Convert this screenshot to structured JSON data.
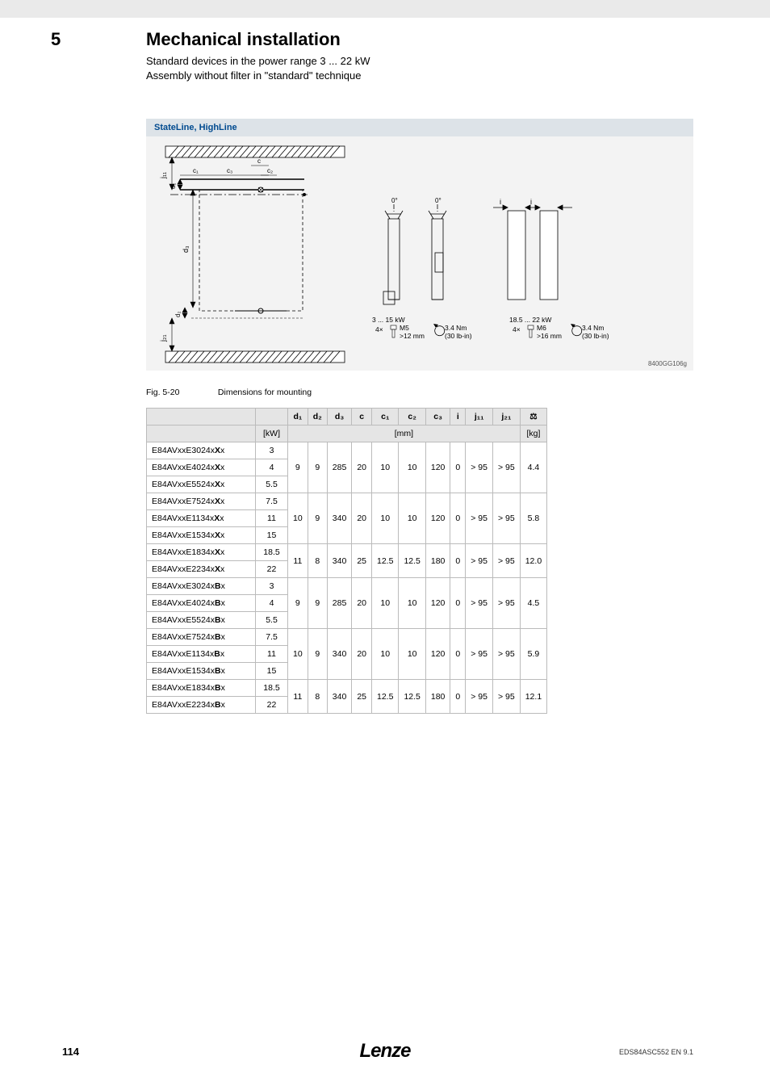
{
  "header": {
    "section_number": "5",
    "section_title": "Mechanical installation",
    "subtitle1": "Standard devices in the power range 3 ... 22 kW",
    "subtitle2": "Assembly without filter in \"standard\" technique"
  },
  "diagram": {
    "header": "StateLine, HighLine",
    "ref": "8400GG106g",
    "spec1_title": "3 ... 15 kW",
    "spec1_count": "4×",
    "spec1_screw": "M5",
    "spec1_len": ">12 mm",
    "spec1_torque": "3.4 Nm",
    "spec1_torque_alt": "(30 lb-in)",
    "spec2_title": "18.5 ... 22 kW",
    "spec2_count": "4×",
    "spec2_screw": "M6",
    "spec2_len": ">16 mm",
    "spec2_torque": "3.4 Nm",
    "spec2_torque_alt": "(30 lb-in)"
  },
  "figure": {
    "label": "Fig. 5-20",
    "caption": "Dimensions for mounting"
  },
  "table": {
    "headers": [
      "",
      "",
      "d₁",
      "d₂",
      "d₃",
      "c",
      "c₁",
      "c₂",
      "c₃",
      "i",
      "j₁₁",
      "j₂₁",
      "⚖"
    ],
    "units": [
      "",
      "[kW]",
      "",
      "",
      "",
      "",
      "[mm]",
      "",
      "",
      "",
      "",
      "",
      "[kg]"
    ],
    "groups": [
      {
        "rows": [
          {
            "model": "E84AVxxE3024xXx",
            "kw": "3"
          },
          {
            "model": "E84AVxxE4024xXx",
            "kw": "4"
          },
          {
            "model": "E84AVxxE5524xXx",
            "kw": "5.5"
          }
        ],
        "vals": [
          "9",
          "9",
          "285",
          "20",
          "10",
          "10",
          "120",
          "0",
          "> 95",
          "> 95",
          "4.4"
        ]
      },
      {
        "rows": [
          {
            "model": "E84AVxxE7524xXx",
            "kw": "7.5"
          },
          {
            "model": "E84AVxxE1134xXx",
            "kw": "11"
          },
          {
            "model": "E84AVxxE1534xXx",
            "kw": "15"
          }
        ],
        "vals": [
          "10",
          "9",
          "340",
          "20",
          "10",
          "10",
          "120",
          "0",
          "> 95",
          "> 95",
          "5.8"
        ]
      },
      {
        "rows": [
          {
            "model": "E84AVxxE1834xXx",
            "kw": "18.5"
          },
          {
            "model": "E84AVxxE2234xXx",
            "kw": "22"
          }
        ],
        "vals": [
          "11",
          "8",
          "340",
          "25",
          "12.5",
          "12.5",
          "180",
          "0",
          "> 95",
          "> 95",
          "12.0"
        ]
      },
      {
        "rows": [
          {
            "model": "E84AVxxE3024xBx",
            "kw": "3"
          },
          {
            "model": "E84AVxxE4024xBx",
            "kw": "4"
          },
          {
            "model": "E84AVxxE5524xBx",
            "kw": "5.5"
          }
        ],
        "vals": [
          "9",
          "9",
          "285",
          "20",
          "10",
          "10",
          "120",
          "0",
          "> 95",
          "> 95",
          "4.5"
        ]
      },
      {
        "rows": [
          {
            "model": "E84AVxxE7524xBx",
            "kw": "7.5"
          },
          {
            "model": "E84AVxxE1134xBx",
            "kw": "11"
          },
          {
            "model": "E84AVxxE1534xBx",
            "kw": "15"
          }
        ],
        "vals": [
          "10",
          "9",
          "340",
          "20",
          "10",
          "10",
          "120",
          "0",
          "> 95",
          "> 95",
          "5.9"
        ]
      },
      {
        "rows": [
          {
            "model": "E84AVxxE1834xBx",
            "kw": "18.5"
          },
          {
            "model": "E84AVxxE2234xBx",
            "kw": "22"
          }
        ],
        "vals": [
          "11",
          "8",
          "340",
          "25",
          "12.5",
          "12.5",
          "180",
          "0",
          "> 95",
          "> 95",
          "12.1"
        ]
      }
    ],
    "bold_chars": {
      "0": "X",
      "1": "X",
      "2": "X",
      "3": "B",
      "4": "B",
      "5": "B"
    }
  },
  "footer": {
    "page": "114",
    "logo": "Lenze",
    "docref": "EDS84ASC552 EN 9.1"
  }
}
